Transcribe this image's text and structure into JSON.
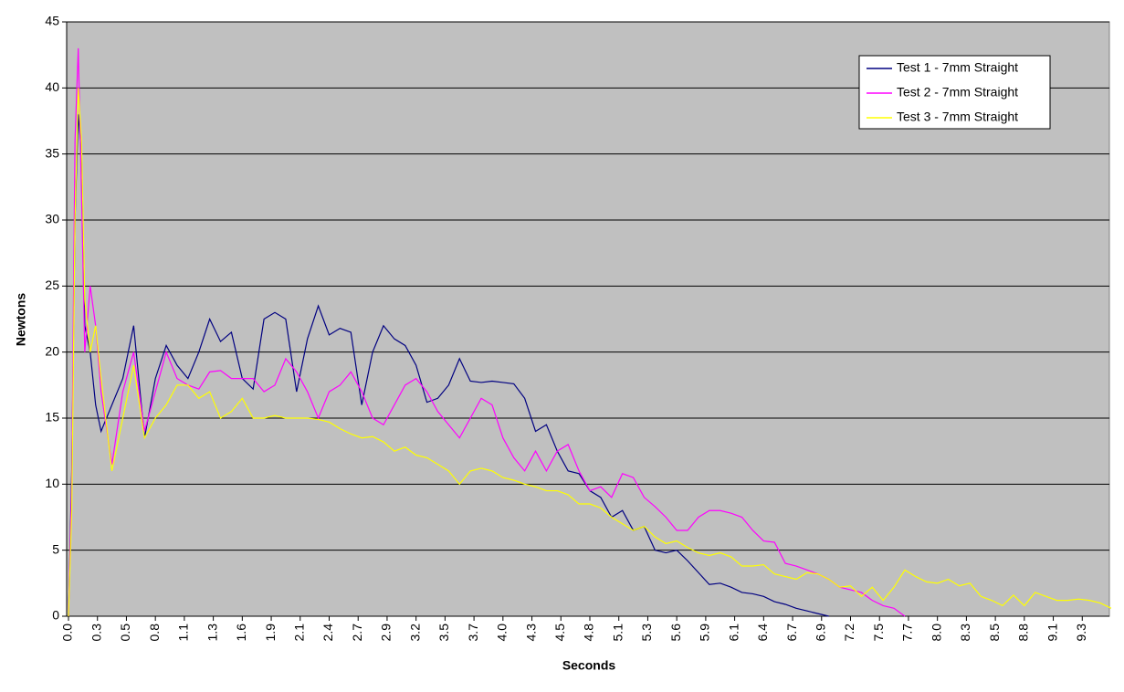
{
  "chart_data": {
    "type": "line",
    "xlabel": "Seconds",
    "ylabel": "Newtons",
    "x": [
      0,
      0.03,
      0.06,
      0.09,
      0.12,
      0.15,
      0.2,
      0.25,
      0.3,
      0.4,
      0.5,
      0.6,
      0.7,
      0.8,
      0.9,
      1.0,
      1.1,
      1.2,
      1.3,
      1.4,
      1.5,
      1.6,
      1.7,
      1.8,
      1.9,
      2.0,
      2.1,
      2.2,
      2.3,
      2.4,
      2.5,
      2.6,
      2.7,
      2.8,
      2.9,
      3.0,
      3.1,
      3.2,
      3.3,
      3.4,
      3.5,
      3.6,
      3.7,
      3.8,
      3.9,
      4.0,
      4.1,
      4.2,
      4.3,
      4.4,
      4.5,
      4.6,
      4.7,
      4.8,
      4.9,
      5.0,
      5.1,
      5.2,
      5.3,
      5.4,
      5.5,
      5.6,
      5.7,
      5.8,
      5.9,
      6.0,
      6.1,
      6.2,
      6.3,
      6.4,
      6.5,
      6.6,
      6.7,
      6.8,
      6.9,
      7.0,
      7.1,
      7.2,
      7.3,
      7.4,
      7.5,
      7.6,
      7.7,
      7.8,
      7.9,
      8.0,
      8.1,
      8.2,
      8.3,
      8.4,
      8.5,
      8.6,
      8.7,
      8.8,
      8.9,
      9.0,
      9.1,
      9.2,
      9.3,
      9.4,
      9.5,
      9.6
    ],
    "series": [
      {
        "name": "Test 1 - 7mm Straight",
        "color": "#000080",
        "values": [
          0,
          11,
          30,
          38,
          35,
          22,
          20,
          16,
          14,
          16,
          18,
          22,
          13.5,
          18,
          20.5,
          19,
          18,
          20,
          22.5,
          20.8,
          21.5,
          18,
          17.2,
          22.5,
          23,
          22.5,
          17,
          21,
          23.5,
          21.3,
          21.8,
          21.5,
          16,
          20,
          22,
          21,
          20.5,
          19,
          16.2,
          16.5,
          17.5,
          19.5,
          17.8,
          17.7,
          17.8,
          17.7,
          17.6,
          16.5,
          14,
          14.5,
          12.5,
          11,
          10.8,
          9.5,
          9,
          7.5,
          8,
          6.5,
          6.8,
          5,
          4.8,
          5,
          4.2,
          3.3,
          2.4,
          2.5,
          2.2,
          1.8,
          1.7,
          1.5,
          1.1,
          0.9,
          0.6,
          0.4,
          0.2,
          0,
          null,
          null,
          null,
          null,
          null,
          null,
          null,
          null,
          null,
          null,
          null,
          null,
          null,
          null,
          null,
          null,
          null,
          null,
          null,
          null,
          null,
          null,
          null,
          null,
          null,
          null
        ]
      },
      {
        "name": "Test 2 - 7mm Straight",
        "color": "#ff00ff",
        "values": [
          0,
          10,
          36,
          43,
          32,
          20,
          25,
          22,
          17,
          11.5,
          17,
          20,
          14,
          17,
          20,
          18,
          17.5,
          17.2,
          18.5,
          18.6,
          18,
          18,
          18,
          17,
          17.5,
          19.5,
          18.5,
          17,
          15,
          17,
          17.5,
          18.5,
          17,
          15,
          14.5,
          16,
          17.5,
          18,
          17,
          15.5,
          14.5,
          13.5,
          15,
          16.5,
          16,
          13.5,
          12,
          11,
          12.5,
          11,
          12.5,
          13,
          11,
          9.5,
          9.8,
          9,
          10.8,
          10.5,
          9,
          8.3,
          7.5,
          6.5,
          6.5,
          7.5,
          8,
          8,
          7.8,
          7.5,
          6.5,
          5.7,
          5.6,
          4,
          3.8,
          3.5,
          3.2,
          2.8,
          2.2,
          2,
          1.8,
          1.2,
          0.8,
          0.6,
          0,
          null,
          null,
          null,
          null,
          null,
          null,
          null,
          null,
          null,
          null,
          null,
          null,
          null,
          null,
          null,
          null,
          null,
          null,
          null
        ]
      },
      {
        "name": "Test 3 - 7mm Straight",
        "color": "#ffff00",
        "values": [
          0,
          8,
          30,
          40,
          36,
          24,
          20,
          22,
          18,
          11,
          15,
          19,
          13.5,
          15,
          16,
          17.5,
          17.5,
          16.5,
          17,
          15,
          15.5,
          16.5,
          15,
          15,
          15.2,
          15,
          15,
          15,
          14.9,
          14.7,
          14.2,
          13.8,
          13.5,
          13.6,
          13.2,
          12.5,
          12.8,
          12.2,
          12,
          11.5,
          11,
          10,
          11,
          11.2,
          11,
          10.5,
          10.3,
          10,
          9.8,
          9.5,
          9.5,
          9.2,
          8.5,
          8.5,
          8.2,
          7.5,
          7,
          6.5,
          6.8,
          6,
          5.5,
          5.7,
          5.2,
          4.8,
          4.6,
          4.8,
          4.5,
          3.8,
          3.8,
          3.9,
          3.2,
          3,
          2.8,
          3.3,
          3.2,
          2.8,
          2.2,
          2.3,
          1.5,
          2.2,
          1.2,
          2.2,
          3.5,
          3,
          2.6,
          2.5,
          2.8,
          2.3,
          2.5,
          1.5,
          1.2,
          0.8,
          1.6,
          0.8,
          1.8,
          1.5,
          1.2,
          1.2,
          1.3,
          1.2,
          1.0,
          0.6
        ]
      }
    ],
    "xlim": [
      0,
      9.6
    ],
    "xticks": [
      {
        "value": 0,
        "label": "0.0"
      },
      {
        "value": 0.2667,
        "label": "0.3"
      },
      {
        "value": 0.5333,
        "label": "0.5"
      },
      0.8,
      {
        "value": 1.0667,
        "label": "1.1"
      },
      {
        "value": 1.3333,
        "label": "1.3"
      },
      1.6,
      {
        "value": 1.8667,
        "label": "1.9"
      },
      {
        "value": 2.1333,
        "label": "2.1"
      },
      2.4,
      {
        "value": 2.6667,
        "label": "2.7"
      },
      {
        "value": 2.9333,
        "label": "2.9"
      },
      3.2,
      {
        "value": 3.4667,
        "label": "3.5"
      },
      {
        "value": 3.7333,
        "label": "3.7"
      },
      {
        "value": 4,
        "label": "4.0"
      },
      {
        "value": 4.2667,
        "label": "4.3"
      },
      {
        "value": 4.5333,
        "label": "4.5"
      },
      4.8,
      {
        "value": 5.0667,
        "label": "5.1"
      },
      {
        "value": 5.3333,
        "label": "5.3"
      },
      5.6,
      {
        "value": 5.8667,
        "label": "5.9"
      },
      {
        "value": 6.1333,
        "label": "6.1"
      },
      6.4,
      {
        "value": 6.6667,
        "label": "6.7"
      },
      {
        "value": 6.9333,
        "label": "6.9"
      },
      7.2,
      {
        "value": 7.4667,
        "label": "7.5"
      },
      {
        "value": 7.7333,
        "label": "7.7"
      },
      {
        "value": 8,
        "label": "8.0"
      },
      {
        "value": 8.2667,
        "label": "8.3"
      },
      {
        "value": 8.5333,
        "label": "8.5"
      },
      8.8,
      {
        "value": 9.0667,
        "label": "9.1"
      },
      {
        "value": 9.3333,
        "label": "9.3"
      }
    ],
    "ylim": [
      0,
      45
    ],
    "yticks": [
      0,
      5,
      10,
      15,
      20,
      25,
      30,
      35,
      40,
      45
    ],
    "grid": true,
    "legend": "top-right",
    "background": "#c0c0c0"
  }
}
